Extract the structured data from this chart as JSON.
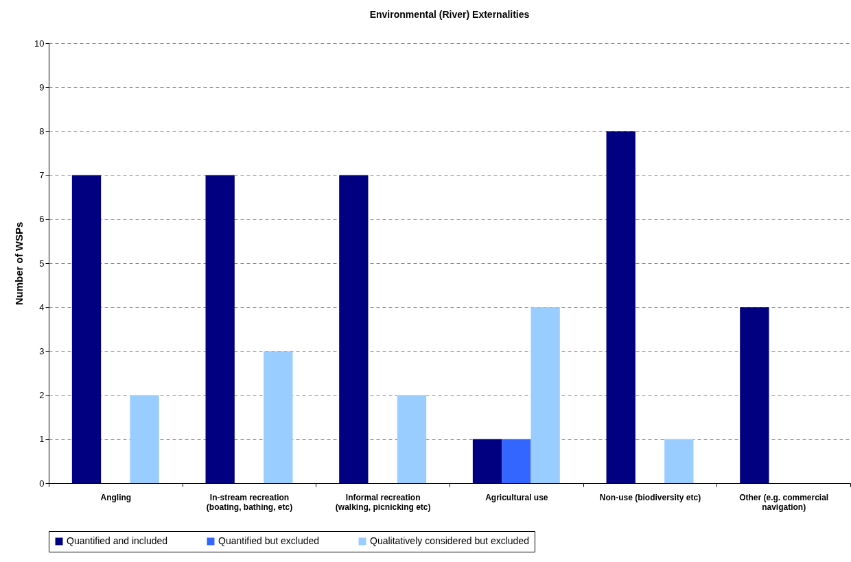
{
  "chart_data": {
    "type": "bar",
    "title": "Environmental (River) Externalities",
    "ylabel": "Number of WSPs",
    "categories": [
      "Angling",
      "In-stream recreation (boating, bathing, etc)",
      "Informal recreation (walking, picnicking etc)",
      "Agricultural use",
      "Non-use (biodiversity etc)",
      "Other (e.g. commercial navigation)"
    ],
    "series": [
      {
        "name": "Quantified and included",
        "color": "#000080",
        "values": [
          7,
          7,
          7,
          1,
          8,
          4
        ]
      },
      {
        "name": "Quantified but excluded",
        "color": "#3366ff",
        "values": [
          0,
          0,
          0,
          1,
          0,
          0
        ]
      },
      {
        "name": "Qualitatively considered but excluded",
        "color": "#99ccff",
        "values": [
          2,
          3,
          2,
          4,
          1,
          0
        ]
      }
    ],
    "ylim": [
      0,
      10
    ],
    "yticks": [
      0,
      1,
      2,
      3,
      4,
      5,
      6,
      7,
      8,
      9,
      10
    ],
    "grid": "y",
    "legend": "bottom"
  }
}
